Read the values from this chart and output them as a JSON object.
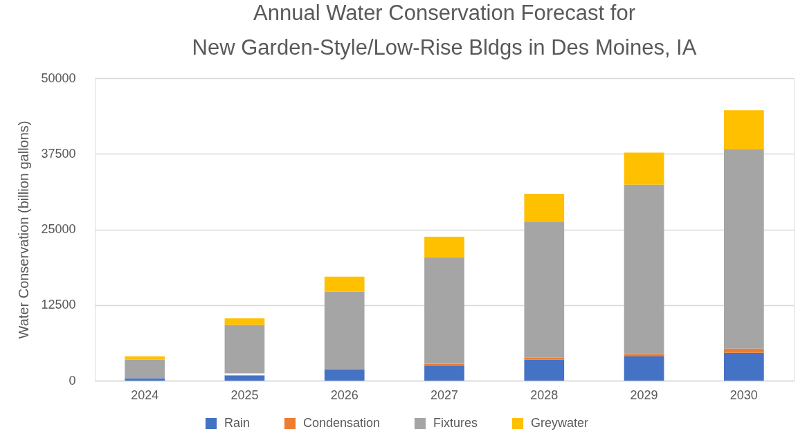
{
  "chart_data": {
    "type": "bar",
    "title": "Annual Water Conservation Forecast for\nNew Garden-Style/Low-Rise Bldgs in Des Moines, IA",
    "ylabel": "Water Conservation (billion gallons)",
    "categories": [
      "2024",
      "2025",
      "2026",
      "2027",
      "2028",
      "2029",
      "2030"
    ],
    "stacked": true,
    "series": [
      {
        "name": "Rain",
        "color": "#4472c4",
        "values": [
          400,
          900,
          1900,
          2500,
          3500,
          4000,
          4600
        ]
      },
      {
        "name": "Condensation",
        "color": "#ed7d31",
        "colors": [
          null,
          "#ffffff",
          null,
          "#ed7d31",
          "#ed7d31",
          "#ed7d31",
          "#ed7d31"
        ],
        "values": [
          null,
          300,
          null,
          300,
          300,
          400,
          700
        ]
      },
      {
        "name": "Fixtures",
        "color": "#a5a5a5",
        "values": [
          3100,
          8000,
          12800,
          17600,
          22500,
          28000,
          33000
        ]
      },
      {
        "name": "Greywater",
        "color": "#ffc000",
        "values": [
          500,
          1100,
          2500,
          3400,
          4600,
          5300,
          6400
        ]
      }
    ],
    "ylim": [
      0,
      50000
    ],
    "yticks": [
      0,
      12500,
      25000,
      37500,
      50000
    ],
    "grid": "y",
    "legend": "bottom"
  }
}
